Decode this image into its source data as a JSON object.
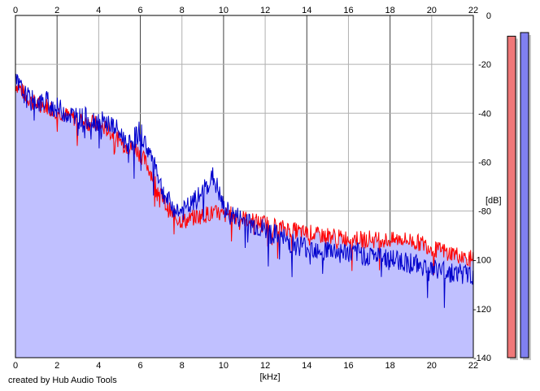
{
  "chart_data": {
    "type": "area",
    "xlabel": "[kHz]",
    "ylabel": "[dB]",
    "xlim": [
      0,
      22
    ],
    "ylim": [
      -140,
      0
    ],
    "x_ticks": [
      0,
      2,
      4,
      6,
      8,
      10,
      12,
      14,
      16,
      18,
      20,
      22
    ],
    "y_ticks": [
      0,
      -20,
      -40,
      -60,
      -80,
      -100,
      -120,
      -140
    ],
    "grid": true,
    "series": [
      {
        "color": "#ff0000",
        "x": [
          0,
          0.25,
          0.5,
          0.75,
          1,
          1.25,
          1.5,
          1.75,
          2,
          2.25,
          2.5,
          2.75,
          3,
          3.25,
          3.5,
          3.75,
          4,
          4.25,
          4.5,
          4.75,
          5,
          5.25,
          5.5,
          5.75,
          6,
          6.25,
          6.5,
          6.75,
          7,
          7.25,
          7.5,
          7.75,
          8,
          8.25,
          8.5,
          8.75,
          9,
          9.25,
          9.5,
          9.75,
          10,
          10.25,
          10.5,
          10.75,
          11,
          11.25,
          11.5,
          11.75,
          12,
          12.25,
          12.5,
          12.75,
          13,
          13.25,
          13.5,
          13.75,
          14,
          14.25,
          14.5,
          14.75,
          15,
          15.25,
          15.5,
          15.75,
          16,
          16.25,
          16.5,
          16.75,
          17,
          17.25,
          17.5,
          17.75,
          18,
          18.25,
          18.5,
          18.75,
          19,
          19.25,
          19.5,
          19.75,
          20,
          20.25,
          20.5,
          20.75,
          21,
          21.25,
          21.5,
          21.75,
          22
        ],
        "values": [
          -28,
          -30,
          -33,
          -35,
          -36,
          -37,
          -37,
          -38,
          -39,
          -40,
          -41,
          -42,
          -42,
          -43,
          -44,
          -44,
          -45,
          -46,
          -47,
          -49,
          -51,
          -53,
          -54,
          -54,
          -57,
          -60,
          -64,
          -69,
          -74,
          -78,
          -81,
          -83,
          -84,
          -84,
          -83,
          -82,
          -82,
          -81,
          -81,
          -81,
          -82,
          -81,
          -82,
          -83,
          -83,
          -84,
          -84,
          -85,
          -85,
          -86,
          -86,
          -87,
          -87,
          -88,
          -88,
          -89,
          -89,
          -89,
          -90,
          -90,
          -90,
          -90,
          -91,
          -91,
          -91,
          -91,
          -91,
          -92,
          -91,
          -92,
          -91,
          -92,
          -92,
          -92,
          -91,
          -92,
          -92,
          -93,
          -93,
          -94,
          -95,
          -96,
          -96,
          -97,
          -97,
          -98,
          -99,
          -99,
          -100
        ]
      },
      {
        "color": "#0000cc",
        "x": [
          0,
          0.25,
          0.5,
          0.75,
          1,
          1.25,
          1.5,
          1.75,
          2,
          2.25,
          2.5,
          2.75,
          3,
          3.25,
          3.5,
          3.75,
          4,
          4.25,
          4.5,
          4.75,
          5,
          5.25,
          5.5,
          5.75,
          6,
          6.25,
          6.5,
          6.75,
          7,
          7.25,
          7.5,
          7.75,
          8,
          8.25,
          8.5,
          8.75,
          9,
          9.25,
          9.5,
          9.75,
          10,
          10.25,
          10.5,
          10.75,
          11,
          11.25,
          11.5,
          11.75,
          12,
          12.25,
          12.5,
          12.75,
          13,
          13.25,
          13.5,
          13.75,
          14,
          14.25,
          14.5,
          14.75,
          15,
          15.25,
          15.5,
          15.75,
          16,
          16.25,
          16.5,
          16.75,
          17,
          17.25,
          17.5,
          17.75,
          18,
          18.25,
          18.5,
          18.75,
          19,
          19.25,
          19.5,
          19.75,
          20,
          20.25,
          20.5,
          20.75,
          21,
          21.25,
          21.5,
          21.75,
          22
        ],
        "values": [
          -27,
          -30,
          -33,
          -35,
          -35,
          -36,
          -35,
          -37,
          -38,
          -39,
          -40,
          -41,
          -42,
          -42,
          -42,
          -43,
          -43,
          -44,
          -44,
          -46,
          -48,
          -51,
          -52,
          -50,
          -47,
          -53,
          -57,
          -61,
          -70,
          -75,
          -78,
          -80,
          -80,
          -79,
          -77,
          -75,
          -72,
          -69,
          -66,
          -72,
          -79,
          -81,
          -82,
          -83,
          -84,
          -85,
          -86,
          -87,
          -88,
          -89,
          -90,
          -91,
          -92,
          -93,
          -94,
          -94,
          -95,
          -95,
          -95,
          -96,
          -96,
          -96,
          -97,
          -97,
          -97,
          -98,
          -97,
          -98,
          -98,
          -98,
          -99,
          -99,
          -100,
          -100,
          -100,
          -101,
          -101,
          -102,
          -102,
          -103,
          -104,
          -104,
          -104,
          -105,
          -105,
          -105,
          -106,
          -106,
          -106
        ]
      }
    ],
    "level_meters": [
      {
        "color": "#f07878",
        "value": -8.5
      },
      {
        "color": "#8080f0",
        "value": -7
      }
    ]
  },
  "footer": {
    "credit": "created by Hub Audio Tools"
  }
}
